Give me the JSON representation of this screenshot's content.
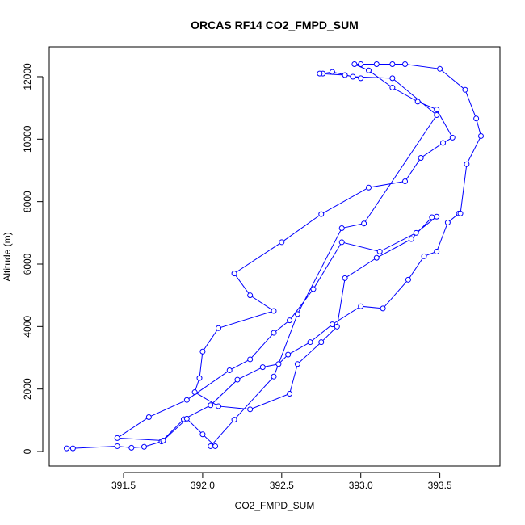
{
  "chart_data": {
    "type": "line",
    "title": "ORCAS RF14 CO2_FMPD_SUM",
    "x_label": "CO2_FMPD_SUM",
    "y_label": "Altitude (m)",
    "color": "#0000ff",
    "x": [
      391.14,
      391.18,
      391.46,
      391.55,
      391.63,
      391.74,
      391.88,
      392.05,
      392.22,
      392.38,
      392.48,
      392.54,
      392.68,
      392.82,
      393.0,
      393.14,
      393.3,
      393.4,
      393.48,
      393.55,
      393.62,
      393.63,
      393.67,
      393.76,
      393.73,
      393.66,
      393.5,
      393.28,
      393.2,
      393.1,
      393.0,
      392.96,
      393.05,
      393.2,
      393.36,
      393.48,
      393.58,
      393.52,
      393.38,
      393.28,
      393.05,
      392.75,
      392.5,
      392.2,
      392.3,
      392.45,
      392.1,
      392.0,
      391.98,
      391.95,
      392.1,
      392.3,
      392.55,
      392.6,
      392.75,
      392.85,
      392.9,
      393.1,
      393.32,
      393.45,
      393.48,
      393.35,
      393.12,
      392.88,
      392.7,
      392.55,
      392.45,
      392.3,
      392.17,
      391.9,
      391.66,
      391.46,
      391.75,
      391.9,
      392.0,
      392.08,
      392.05,
      392.2,
      392.45,
      392.6,
      392.88,
      393.02,
      393.48,
      393.2,
      392.95,
      392.82,
      392.76,
      392.74,
      392.9,
      393.0
    ],
    "values": [
      100,
      100,
      170,
      120,
      150,
      320,
      1030,
      1480,
      2300,
      2700,
      2800,
      3100,
      3500,
      4070,
      4650,
      4580,
      5500,
      6250,
      6400,
      7330,
      7620,
      7620,
      9200,
      10100,
      10660,
      11580,
      12250,
      12400,
      12400,
      12400,
      12400,
      12400,
      12200,
      11650,
      11200,
      10950,
      10050,
      9880,
      9400,
      8650,
      8450,
      7600,
      6700,
      5700,
      5000,
      4500,
      3950,
      3200,
      2350,
      1900,
      1450,
      1350,
      1850,
      2800,
      3500,
      4000,
      5550,
      6200,
      6800,
      7500,
      7520,
      7000,
      6400,
      6700,
      5200,
      4200,
      3800,
      2950,
      2600,
      1650,
      1100,
      430,
      350,
      1050,
      550,
      170,
      170,
      1020,
      2400,
      4400,
      7150,
      7300,
      10770,
      11950,
      12000,
      12150,
      12100,
      12100,
      12050,
      11950
    ],
    "xlim": [
      391.03,
      393.88
    ],
    "ylim": [
      -465,
      12956
    ],
    "xticks": [
      391.5,
      {
        "value": 392,
        "label": "392.0"
      },
      392.5,
      {
        "value": 393,
        "label": "393.0"
      },
      393.5
    ],
    "yticks": [
      0,
      2000,
      4000,
      6000,
      8000,
      10000,
      12000
    ]
  }
}
